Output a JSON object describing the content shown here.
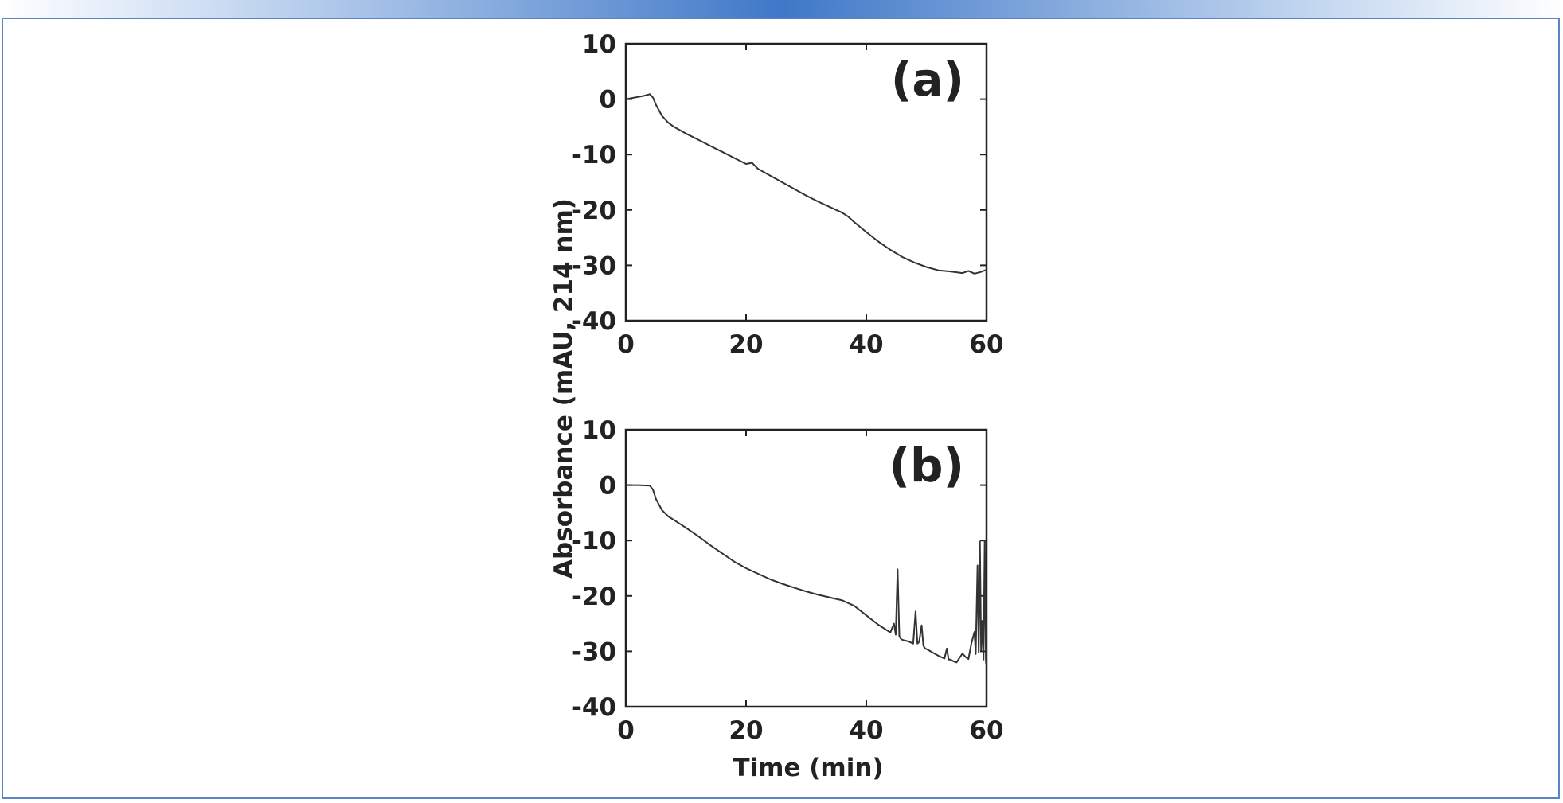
{
  "chart_data": [
    {
      "type": "line",
      "panel_label": "(a)",
      "xlim": [
        0,
        60
      ],
      "ylim": [
        -40,
        10
      ],
      "xticks": [
        0,
        20,
        40,
        60
      ],
      "yticks": [
        10,
        0,
        -10,
        -20,
        -30,
        -40
      ],
      "series": [
        {
          "x": [
            0,
            1,
            2,
            3,
            4,
            4.5,
            5,
            6,
            7,
            8,
            10,
            12,
            14,
            16,
            18,
            20,
            21,
            22,
            24,
            26,
            28,
            30,
            32,
            34,
            36,
            37,
            38,
            40,
            42,
            44,
            46,
            48,
            50,
            52,
            54,
            56,
            57,
            58,
            59,
            60
          ],
          "y": [
            0,
            0.2,
            0.4,
            0.6,
            0.9,
            0.3,
            -1,
            -3,
            -4.2,
            -5,
            -6.2,
            -7.3,
            -8.4,
            -9.5,
            -10.6,
            -11.7,
            -11.5,
            -12.6,
            -13.8,
            -15.0,
            -16.2,
            -17.4,
            -18.5,
            -19.5,
            -20.5,
            -21.2,
            -22.2,
            -24,
            -25.7,
            -27.2,
            -28.5,
            -29.5,
            -30.3,
            -30.9,
            -31.1,
            -31.4,
            -31.0,
            -31.5,
            -31.2,
            -30.8
          ]
        }
      ]
    },
    {
      "type": "line",
      "panel_label": "(b)",
      "xlim": [
        0,
        60
      ],
      "ylim": [
        -40,
        10
      ],
      "xticks": [
        0,
        20,
        40,
        60
      ],
      "yticks": [
        10,
        0,
        -10,
        -20,
        -30,
        -40
      ],
      "xlabel": "Time (min)",
      "series": [
        {
          "x": [
            0,
            2,
            4,
            4.5,
            5,
            6,
            7,
            8,
            10,
            12,
            14,
            16,
            18,
            20,
            22,
            24,
            26,
            28,
            30,
            32,
            34,
            36,
            38,
            40,
            42,
            44,
            44.6,
            44.9,
            45.2,
            45.5,
            45.8,
            46.2,
            47,
            47.8,
            48.2,
            48.5,
            48.8,
            49.2,
            49.5,
            49.8,
            50.2,
            51,
            52,
            53,
            53.4,
            53.7,
            54,
            54.5,
            55,
            55.5,
            56,
            56.5,
            57,
            57.5,
            58,
            58.2,
            58.5,
            58.7,
            58.9,
            59.1,
            59.3,
            59.5,
            59.7,
            59.9,
            60
          ],
          "y": [
            0,
            0,
            -0.1,
            -0.8,
            -2.5,
            -4.5,
            -5.6,
            -6.3,
            -7.7,
            -9.2,
            -10.8,
            -12.3,
            -13.8,
            -15,
            -16,
            -17,
            -17.8,
            -18.5,
            -19.2,
            -19.8,
            -20.3,
            -20.8,
            -21.8,
            -23.5,
            -25.2,
            -26.6,
            -25.0,
            -27.0,
            -15.2,
            -27.3,
            -27.8,
            -28.0,
            -28.2,
            -28.6,
            -22.8,
            -28.6,
            -28.3,
            -25.3,
            -29.0,
            -29.5,
            -29.7,
            -30.2,
            -30.8,
            -31.3,
            -29.5,
            -31.5,
            -31.5,
            -31.8,
            -32.0,
            -31.2,
            -30.4,
            -31.0,
            -31.4,
            -28.5,
            -26.5,
            -30.5,
            -14.5,
            -30.2,
            -10.2,
            -29.8,
            -24.5,
            -31.5,
            -10.0,
            -32.0,
            -32.5
          ]
        }
      ]
    }
  ],
  "shared_ylabel": "Absorbance (mAU, 214 nm)"
}
